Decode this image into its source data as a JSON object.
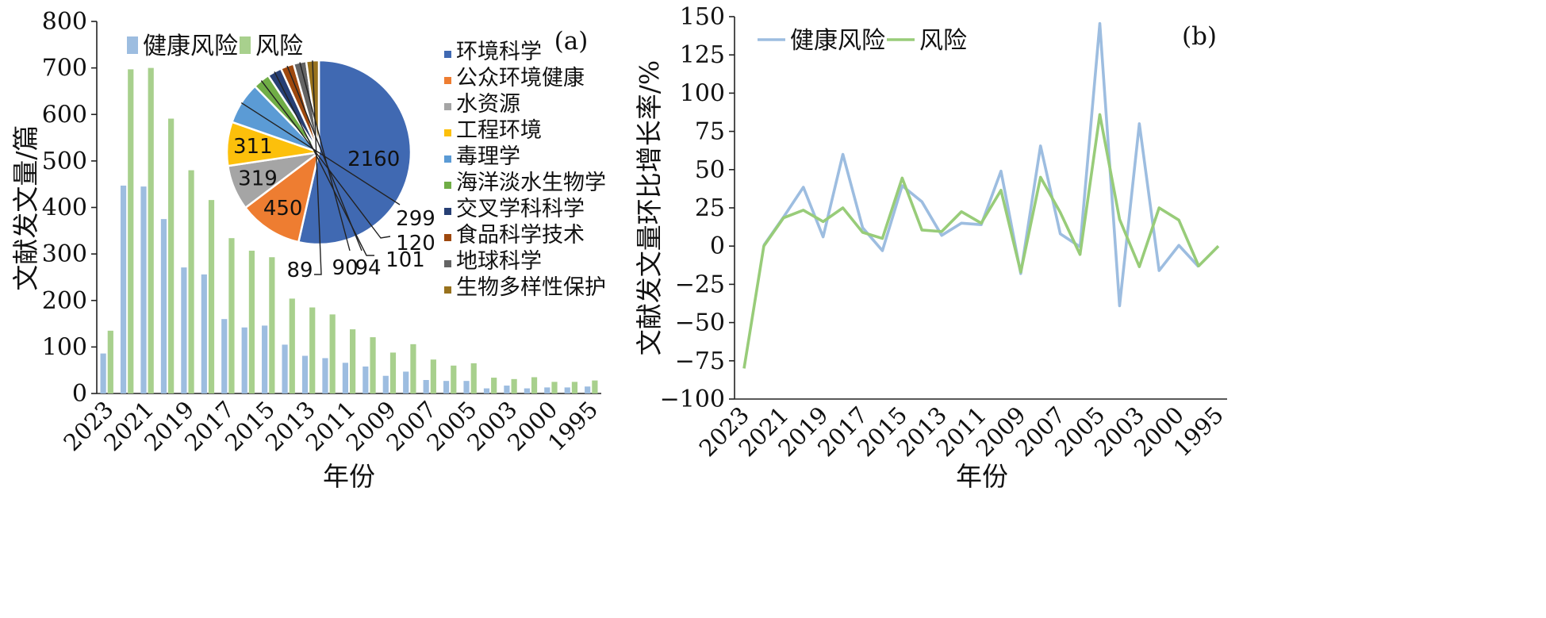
{
  "colors": {
    "health_risk": "#9dbde0",
    "risk": "#a8d08d",
    "health_risk_line": "#9dbde0",
    "risk_line": "#98cc79"
  },
  "chart_data": [
    {
      "panel": "(a)",
      "type": "bar",
      "xlabel": "年份",
      "ylabel": "文献发文量/篇",
      "ylim": [
        0,
        800
      ],
      "yticks": [
        0,
        100,
        200,
        300,
        400,
        500,
        600,
        700,
        800
      ],
      "categories": [
        "2023",
        "2022",
        "2021",
        "2020",
        "2019",
        "2018",
        "2017",
        "2016",
        "2015",
        "2014",
        "2013",
        "2012",
        "2011",
        "2010",
        "2009",
        "2008",
        "2007",
        "2006",
        "2005",
        "2004",
        "2003",
        "2002",
        "2000",
        "1999",
        "1995"
      ],
      "xtick_labels": [
        "2023",
        "2021",
        "2019",
        "2017",
        "2015",
        "2013",
        "2011",
        "2009",
        "2007",
        "2005",
        "2003",
        "2000",
        "1995"
      ],
      "legend_position": "top-left",
      "series": [
        {
          "name": "健康风险",
          "values": [
            86,
            447,
            445,
            375,
            271,
            256,
            160,
            142,
            146,
            105,
            81,
            76,
            66,
            58,
            38,
            47,
            29,
            27,
            27,
            11,
            17,
            11,
            13,
            13,
            15
          ]
        },
        {
          "name": "风险",
          "values": [
            135,
            697,
            700,
            591,
            480,
            416,
            334,
            307,
            293,
            204,
            185,
            170,
            138,
            121,
            88,
            106,
            73,
            60,
            65,
            34,
            31,
            35,
            25,
            25,
            28
          ]
        }
      ],
      "inset_pie": {
        "type": "pie",
        "legend_position": "right",
        "labels": [
          "环境科学",
          "公众环境健康",
          "水资源",
          "工程环境",
          "毒理学",
          "海洋淡水生物学",
          "交叉学科科学",
          "食品科学技术",
          "地球科学",
          "生物多样性保护"
        ],
        "values": [
          2160,
          450,
          319,
          311,
          299,
          120,
          101,
          94,
          90,
          89
        ],
        "value_labels": [
          "2160",
          "450",
          "319",
          "311",
          "299",
          "120",
          "101",
          "94",
          "90",
          "89"
        ],
        "colors": [
          "#4069b2",
          "#ee7d31",
          "#a5a5a5",
          "#fcc00b",
          "#5b9bd5",
          "#70ad46",
          "#273f74",
          "#9e480e",
          "#646464",
          "#98721d"
        ]
      }
    },
    {
      "panel": "(b)",
      "type": "line",
      "xlabel": "年份",
      "ylabel": "文献发文量环比增长率/%",
      "ylim": [
        -100,
        150
      ],
      "yticks": [
        -100,
        -75,
        -50,
        -25,
        0,
        25,
        50,
        75,
        100,
        125,
        150
      ],
      "ytick_labels": [
        "−100",
        "−75",
        "−50",
        "−25",
        "0",
        "25",
        "50",
        "75",
        "100",
        "125",
        "150"
      ],
      "categories": [
        "2023",
        "2022",
        "2021",
        "2020",
        "2019",
        "2018",
        "2017",
        "2016",
        "2015",
        "2014",
        "2013",
        "2012",
        "2011",
        "2010",
        "2009",
        "2008",
        "2007",
        "2006",
        "2005",
        "2004",
        "2003",
        "2002",
        "2000",
        "1999",
        "1995"
      ],
      "xtick_labels": [
        "2023",
        "2021",
        "2019",
        "2017",
        "2015",
        "2013",
        "2011",
        "2009",
        "2007",
        "2005",
        "2003",
        "2000",
        "1995"
      ],
      "legend_position": "top-left",
      "series": [
        {
          "name": "健康风险",
          "values": [
            null,
            0.5,
            19,
            38.5,
            6,
            60,
            12,
            -3,
            39.5,
            29,
            7,
            15,
            14,
            49,
            -18,
            65.5,
            8,
            -0.5,
            145.5,
            -39,
            80,
            -16,
            0.5,
            -13.5,
            null
          ]
        },
        {
          "name": "风险",
          "values": [
            -80,
            0,
            18.5,
            23.5,
            16,
            25,
            9,
            5,
            44.5,
            10.5,
            9.5,
            22.5,
            15,
            36.5,
            -17,
            45,
            22,
            -5.5,
            86,
            17.5,
            -13.5,
            25,
            17,
            -13,
            0
          ]
        }
      ]
    }
  ]
}
